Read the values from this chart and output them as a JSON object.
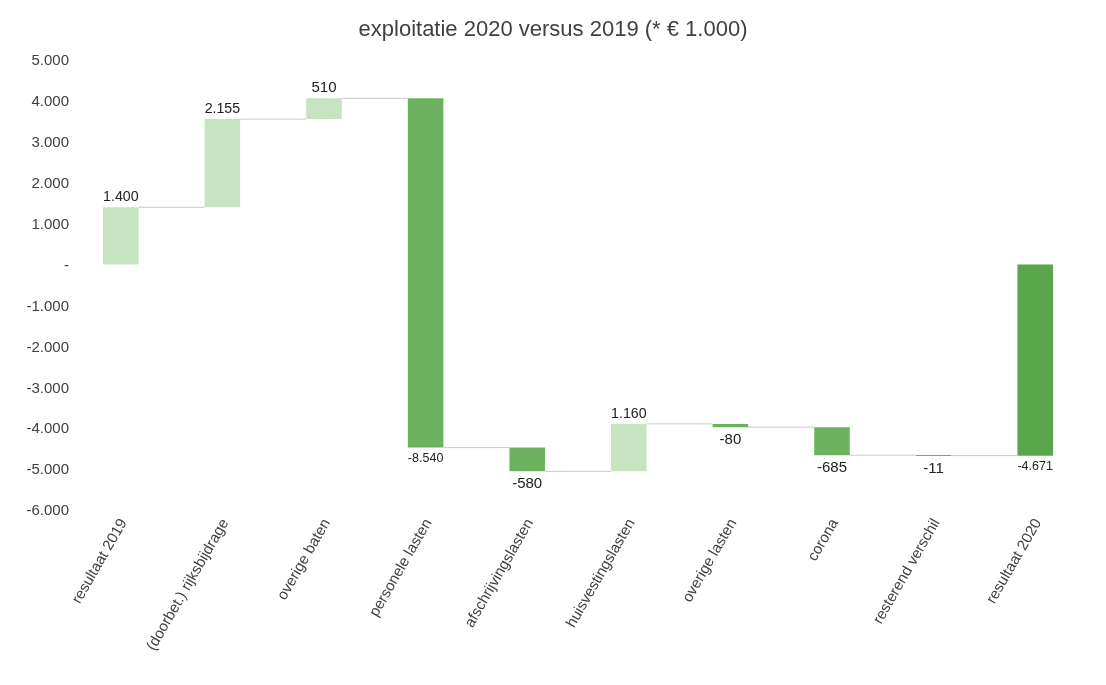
{
  "chart_data": {
    "type": "bar",
    "title": "exploitatie 2020 versus 2019 (* € 1.000)",
    "categories": [
      "resultaat 2019",
      "(doorbet.) rijksbijdrage",
      "overige baten",
      "personele lasten",
      "afschrijvingslasten",
      "huisvestingslasten",
      "overige lasten",
      "corona",
      "resterend verschil",
      "resultaat 2020"
    ],
    "values": [
      1400,
      2155,
      510,
      -8540,
      -580,
      1160,
      -80,
      -685,
      -11,
      -4671
    ],
    "base": [
      0,
      1400,
      3555,
      4065,
      -4475,
      -5055,
      -3895,
      -3975,
      -4660,
      0
    ],
    "colors": [
      "#c6e4bf",
      "#c6e4bf",
      "#c6e4bf",
      "#6db35f",
      "#6db35f",
      "#c6e4bf",
      "#6db35f",
      "#6db35f",
      "#6db35f",
      "#5aa64b"
    ],
    "value_labels": [
      "1.400",
      "2.155",
      "510",
      "-8.540",
      "-580",
      "1.160",
      "-80",
      "-685",
      "-11",
      "-4.671"
    ],
    "ylim": [
      -6000,
      5000
    ],
    "yticks": [
      {
        "value": -6000,
        "label": "-6.000"
      },
      {
        "value": -5000,
        "label": "-5.000"
      },
      {
        "value": -4000,
        "label": "-4.000"
      },
      {
        "value": -3000,
        "label": "-3.000"
      },
      {
        "value": -2000,
        "label": "-2.000"
      },
      {
        "value": -1000,
        "label": "-1.000"
      },
      {
        "value": 0,
        "label": "-"
      },
      {
        "value": 1000,
        "label": "1.000"
      },
      {
        "value": 2000,
        "label": "2.000"
      },
      {
        "value": 3000,
        "label": "3.000"
      },
      {
        "value": 4000,
        "label": "4.000"
      },
      {
        "value": 5000,
        "label": "5.000"
      }
    ],
    "grid": false,
    "legend": false
  }
}
